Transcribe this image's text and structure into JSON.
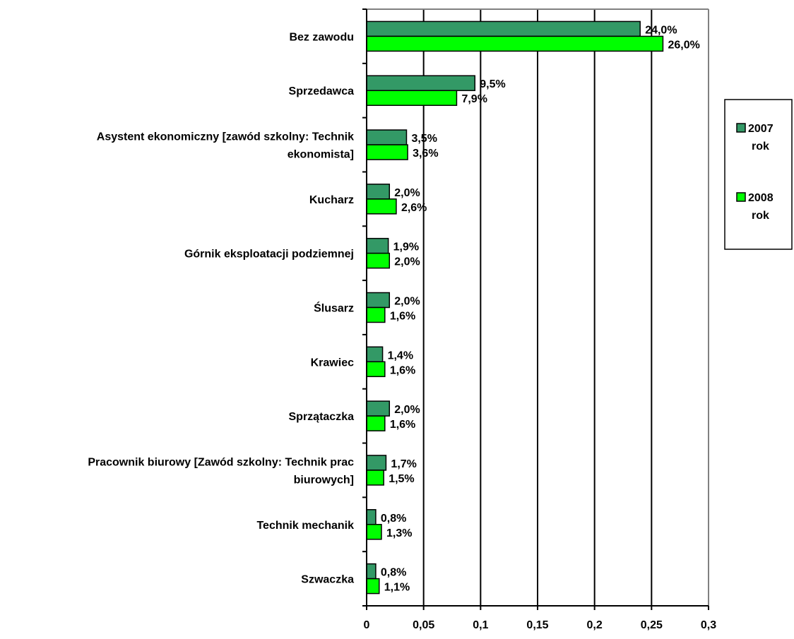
{
  "chart_data": {
    "type": "bar",
    "orientation": "horizontal",
    "categories": [
      "Bez zawodu",
      "Sprzedawca",
      "Asystent ekonomiczny [zawód szkolny: Technik ekonomista]",
      "Kucharz",
      "Górnik eksploatacji podziemnej",
      "Ślusarz",
      "Krawiec",
      "Sprzątaczka",
      "Pracownik biurowy [Zawód szkolny: Technik prac biurowych]",
      "Technik mechanik",
      "Szwaczka"
    ],
    "category_lines": [
      [
        "Bez zawodu"
      ],
      [
        "Sprzedawca"
      ],
      [
        "Asystent ekonomiczny [zawód szkolny: Technik",
        "ekonomista]"
      ],
      [
        "Kucharz"
      ],
      [
        "Górnik eksploatacji podziemnej"
      ],
      [
        "Ślusarz"
      ],
      [
        "Krawiec"
      ],
      [
        "Sprzątaczka"
      ],
      [
        "Pracownik biurowy [Zawód szkolny: Technik prac",
        "biurowych]"
      ],
      [
        "Technik mechanik"
      ],
      [
        "Szwaczka"
      ]
    ],
    "series": [
      {
        "name": "2007 rok",
        "legend_lines": [
          "2007",
          "rok"
        ],
        "color": "#339966",
        "values": [
          0.24,
          0.095,
          0.035,
          0.02,
          0.019,
          0.02,
          0.014,
          0.02,
          0.017,
          0.008,
          0.008
        ],
        "labels": [
          "24,0%",
          "9,5%",
          "3,5%",
          "2,0%",
          "1,9%",
          "2,0%",
          "1,4%",
          "2,0%",
          "1,7%",
          "0,8%",
          "0,8%"
        ]
      },
      {
        "name": "2008 rok",
        "legend_lines": [
          "2008",
          "rok"
        ],
        "color": "#00ff00",
        "values": [
          0.26,
          0.079,
          0.036,
          0.026,
          0.02,
          0.016,
          0.016,
          0.016,
          0.015,
          0.013,
          0.011
        ],
        "labels": [
          "26,0%",
          "7,9%",
          "3,6%",
          "2,6%",
          "2,0%",
          "1,6%",
          "1,6%",
          "1,6%",
          "1,5%",
          "1,3%",
          "1,1%"
        ]
      }
    ],
    "xlim": [
      0,
      0.3
    ],
    "x_ticks": [
      0,
      0.05,
      0.1,
      0.15,
      0.2,
      0.25,
      0.3
    ],
    "x_tick_labels": [
      "0",
      "0,05",
      "0,1",
      "0,15",
      "0,2",
      "0,25",
      "0,3"
    ],
    "grid": "vertical",
    "legend_position": "right"
  }
}
